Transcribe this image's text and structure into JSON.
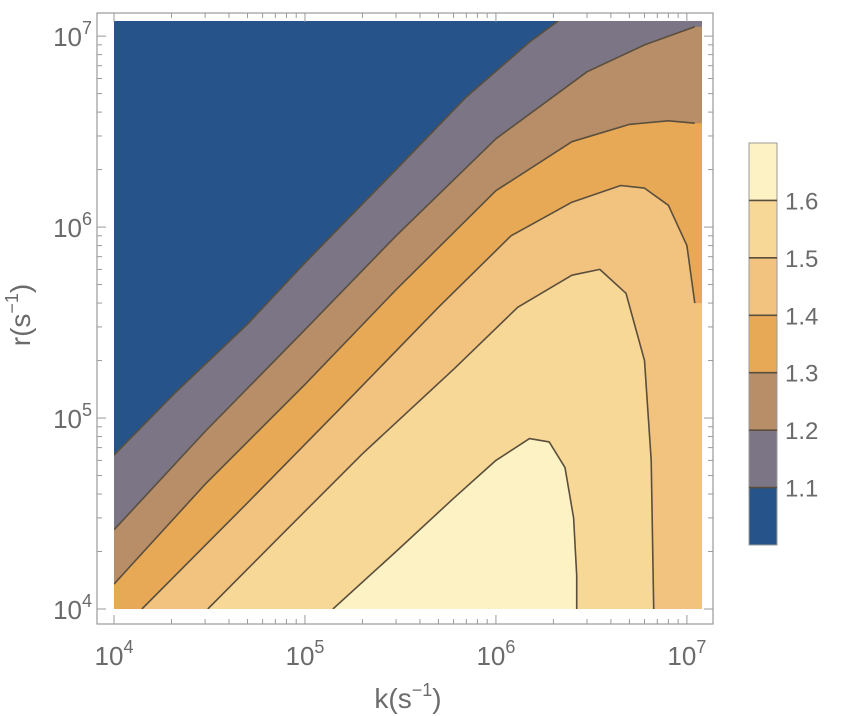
{
  "chart_data": {
    "type": "heatmap",
    "subtype": "contour",
    "title": "",
    "xlabel": {
      "base": "k(s",
      "sup": "−1",
      "close": ")"
    },
    "ylabel": {
      "base": "r(s",
      "sup": "−1",
      "close": ")"
    },
    "x_scale": "log",
    "y_scale": "log",
    "xlim": [
      10000,
      12000000
    ],
    "ylim": [
      10000,
      12000000
    ],
    "x_ticks": [
      {
        "value": 10000,
        "base": "10",
        "exp": "4"
      },
      {
        "value": 100000,
        "base": "10",
        "exp": "5"
      },
      {
        "value": 1000000,
        "base": "10",
        "exp": "6"
      },
      {
        "value": 10000000,
        "base": "10",
        "exp": "7"
      }
    ],
    "y_ticks": [
      {
        "value": 10000,
        "base": "10",
        "exp": "4"
      },
      {
        "value": 100000,
        "base": "10",
        "exp": "5"
      },
      {
        "value": 1000000,
        "base": "10",
        "exp": "6"
      },
      {
        "value": 10000000,
        "base": "10",
        "exp": "7"
      }
    ],
    "grid": false,
    "legend": {
      "position": "right",
      "labels": [
        "1.1",
        "1.2",
        "1.3",
        "1.4",
        "1.5",
        "1.6"
      ]
    },
    "contour_levels": [
      {
        "upper": 1.1,
        "color": "#26548a"
      },
      {
        "upper": 1.2,
        "color": "#7b7585"
      },
      {
        "upper": 1.3,
        "color": "#b78e67"
      },
      {
        "upper": 1.4,
        "color": "#e8a957"
      },
      {
        "upper": 1.5,
        "color": "#f2c27f"
      },
      {
        "upper": 1.6,
        "color": "#f8d896"
      },
      {
        "upper": 1.7,
        "color": "#fdf2c4"
      }
    ],
    "line_color": "#5a4e3c",
    "frame_color": "#9a9a9a",
    "region_boundaries": [
      {
        "name": "boundary-1.1",
        "points": [
          [
            10000,
            64000
          ],
          [
            21000,
            136000
          ],
          [
            50000,
            310000
          ],
          [
            100000,
            650000
          ],
          [
            300000,
            2000000
          ],
          [
            700000,
            4800000
          ],
          [
            1500000,
            9300000
          ],
          [
            2120000,
            12000000
          ]
        ]
      },
      {
        "name": "boundary-1.2",
        "points": [
          [
            10000,
            26000
          ],
          [
            30000,
            85000
          ],
          [
            100000,
            290000
          ],
          [
            300000,
            900000
          ],
          [
            1000000,
            2900000
          ],
          [
            3000000,
            6500000
          ],
          [
            6000000,
            9000000
          ],
          [
            11000000,
            11200000
          ]
        ]
      },
      {
        "name": "boundary-1.3",
        "points": [
          [
            10000,
            13500
          ],
          [
            30000,
            45000
          ],
          [
            100000,
            150000
          ],
          [
            300000,
            470000
          ],
          [
            1000000,
            1550000
          ],
          [
            2500000,
            2800000
          ],
          [
            5000000,
            3450000
          ],
          [
            8000000,
            3600000
          ],
          [
            11000000,
            3500000
          ]
        ]
      },
      {
        "name": "boundary-1.4",
        "points": [
          [
            14000,
            10000
          ],
          [
            50000,
            36000
          ],
          [
            150000,
            110000
          ],
          [
            500000,
            380000
          ],
          [
            1200000,
            900000
          ],
          [
            2500000,
            1350000
          ],
          [
            4500000,
            1650000
          ],
          [
            6000000,
            1600000
          ],
          [
            8000000,
            1300000
          ],
          [
            10000000,
            800000
          ],
          [
            11000000,
            400000
          ]
        ]
      },
      {
        "name": "boundary-1.5",
        "points": [
          [
            31000,
            10000
          ],
          [
            80000,
            26000
          ],
          [
            200000,
            65000
          ],
          [
            600000,
            180000
          ],
          [
            1300000,
            380000
          ],
          [
            2500000,
            560000
          ],
          [
            3500000,
            600000
          ],
          [
            4800000,
            450000
          ],
          [
            6000000,
            200000
          ],
          [
            6500000,
            60000
          ],
          [
            6700000,
            10000
          ]
        ]
      },
      {
        "name": "boundary-1.6",
        "points": [
          [
            140000,
            10000
          ],
          [
            300000,
            20000
          ],
          [
            600000,
            38000
          ],
          [
            1000000,
            60000
          ],
          [
            1500000,
            78000
          ],
          [
            1900000,
            75000
          ],
          [
            2300000,
            55000
          ],
          [
            2550000,
            30000
          ],
          [
            2650000,
            15000
          ],
          [
            2650000,
            10000
          ]
        ]
      }
    ]
  }
}
